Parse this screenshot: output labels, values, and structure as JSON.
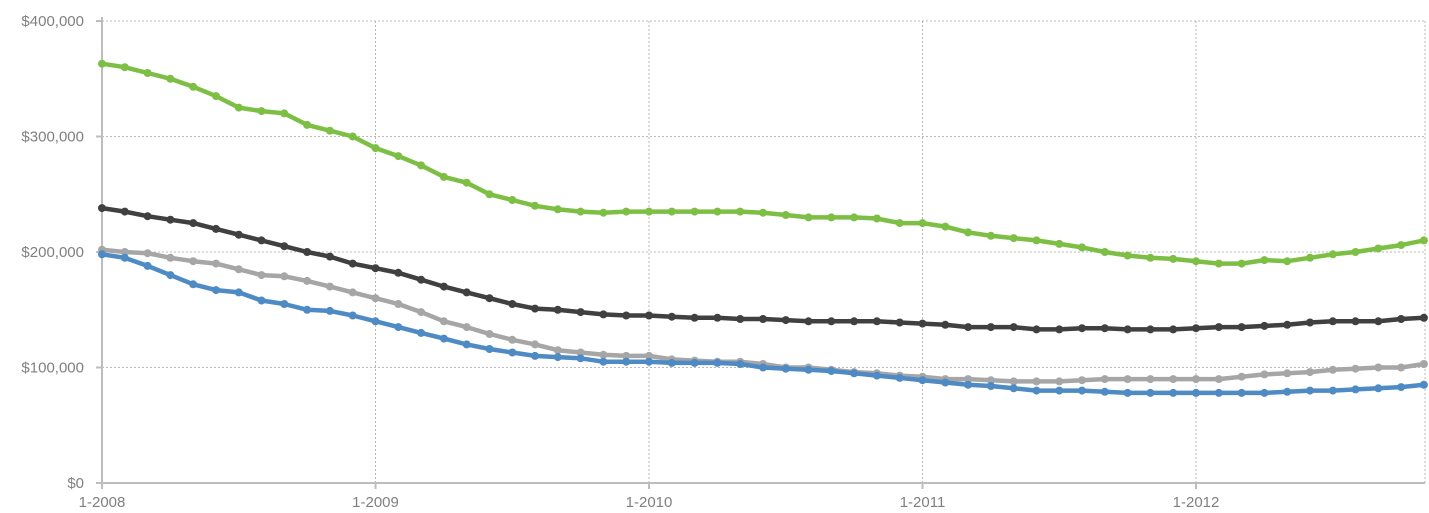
{
  "chart_data": {
    "type": "line",
    "title": "",
    "xlabel": "",
    "ylabel": "",
    "grid": true,
    "legend": "none",
    "x_start": "1-2008",
    "x_tick_labels": [
      "1-2008",
      "1-2009",
      "1-2010",
      "1-2011",
      "1-2012"
    ],
    "y_tick_labels": [
      "$0",
      "$100,000",
      "$200,000",
      "$300,000",
      "$400,000"
    ],
    "y_ticks": [
      0,
      100000,
      200000,
      300000,
      400000
    ],
    "ylim": [
      0,
      400000
    ],
    "series": [
      {
        "color": "#7dbf44",
        "values": [
          363000,
          360000,
          355000,
          350000,
          343000,
          335000,
          325000,
          322000,
          320000,
          310000,
          305000,
          300000,
          290000,
          283000,
          275000,
          265000,
          260000,
          250000,
          245000,
          240000,
          237000,
          235000,
          234000,
          235000,
          235000,
          235000,
          235000,
          235000,
          235000,
          234000,
          232000,
          230000,
          230000,
          230000,
          229000,
          225000,
          225000,
          222000,
          217000,
          214000,
          212000,
          210000,
          207000,
          204000,
          200000,
          197000,
          195000,
          194000,
          192000,
          190000,
          190000,
          193000,
          192000,
          195000,
          198000,
          200000,
          203000,
          206000,
          210000
        ]
      },
      {
        "color": "#404040",
        "values": [
          238000,
          235000,
          231000,
          228000,
          225000,
          220000,
          215000,
          210000,
          205000,
          200000,
          196000,
          190000,
          186000,
          182000,
          176000,
          170000,
          165000,
          160000,
          155000,
          151000,
          150000,
          148000,
          146000,
          145000,
          145000,
          144000,
          143000,
          143000,
          142000,
          142000,
          141000,
          140000,
          140000,
          140000,
          140000,
          139000,
          138000,
          137000,
          135000,
          135000,
          135000,
          133000,
          133000,
          134000,
          134000,
          133000,
          133000,
          133000,
          134000,
          135000,
          135000,
          136000,
          137000,
          139000,
          140000,
          140000,
          140000,
          142000,
          143000
        ]
      },
      {
        "color": "#a6a6a6",
        "values": [
          202000,
          200000,
          199000,
          195000,
          192000,
          190000,
          185000,
          180000,
          179000,
          175000,
          170000,
          165000,
          160000,
          155000,
          148000,
          140000,
          135000,
          129000,
          124000,
          120000,
          115000,
          113000,
          111000,
          110000,
          110000,
          107000,
          106000,
          105000,
          105000,
          103000,
          100000,
          100000,
          98000,
          96000,
          95000,
          93000,
          92000,
          90000,
          90000,
          89000,
          88000,
          88000,
          88000,
          89000,
          90000,
          90000,
          90000,
          90000,
          90000,
          90000,
          92000,
          94000,
          95000,
          96000,
          98000,
          99000,
          100000,
          100000,
          103000,
          105000
        ]
      },
      {
        "color": "#4e8bc4",
        "values": [
          198000,
          195000,
          188000,
          180000,
          172000,
          167000,
          165000,
          158000,
          155000,
          150000,
          149000,
          145000,
          140000,
          135000,
          130000,
          125000,
          120000,
          116000,
          113000,
          110000,
          109000,
          108000,
          105000,
          105000,
          105000,
          104000,
          104000,
          104000,
          103000,
          100000,
          99000,
          98000,
          97000,
          95000,
          93000,
          91000,
          89000,
          87000,
          85000,
          84000,
          82000,
          80000,
          80000,
          80000,
          79000,
          78000,
          78000,
          78000,
          78000,
          78000,
          78000,
          78000,
          79000,
          80000,
          80000,
          81000,
          82000,
          83000,
          85000,
          85000
        ]
      }
    ]
  }
}
